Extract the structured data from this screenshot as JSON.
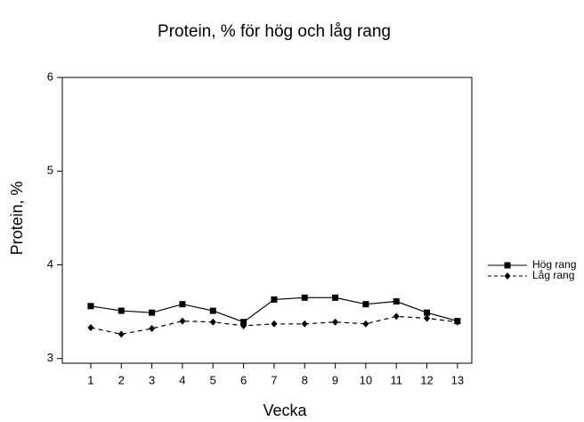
{
  "chart_data": {
    "type": "line",
    "title": "Protein, % för hög och låg rang",
    "x_label": "Vecka",
    "y_label": "Protein, %",
    "x": [
      1,
      2,
      3,
      4,
      5,
      6,
      7,
      8,
      9,
      10,
      11,
      12,
      13
    ],
    "xlim": [
      0.07,
      13.47
    ],
    "xticks": [
      1,
      2,
      3,
      4,
      5,
      6,
      7,
      8,
      9,
      10,
      11,
      12,
      13
    ],
    "ylim": [
      2.95,
      6
    ],
    "yticks": [
      3,
      4,
      5,
      6
    ],
    "legend": "right",
    "series": [
      {
        "name": "Hög rang",
        "color": "#000000",
        "line_style": "solid",
        "marker": "square",
        "values": [
          3.56,
          3.51,
          3.49,
          3.58,
          3.51,
          3.39,
          3.63,
          3.65,
          3.65,
          3.58,
          3.61,
          3.49,
          3.4
        ]
      },
      {
        "name": "Låg rang",
        "color": "#000000",
        "line_style": "dashed",
        "marker": "diamond",
        "values": [
          3.33,
          3.26,
          3.32,
          3.4,
          3.39,
          3.35,
          3.37,
          3.37,
          3.39,
          3.37,
          3.45,
          3.43,
          3.39
        ]
      }
    ]
  }
}
